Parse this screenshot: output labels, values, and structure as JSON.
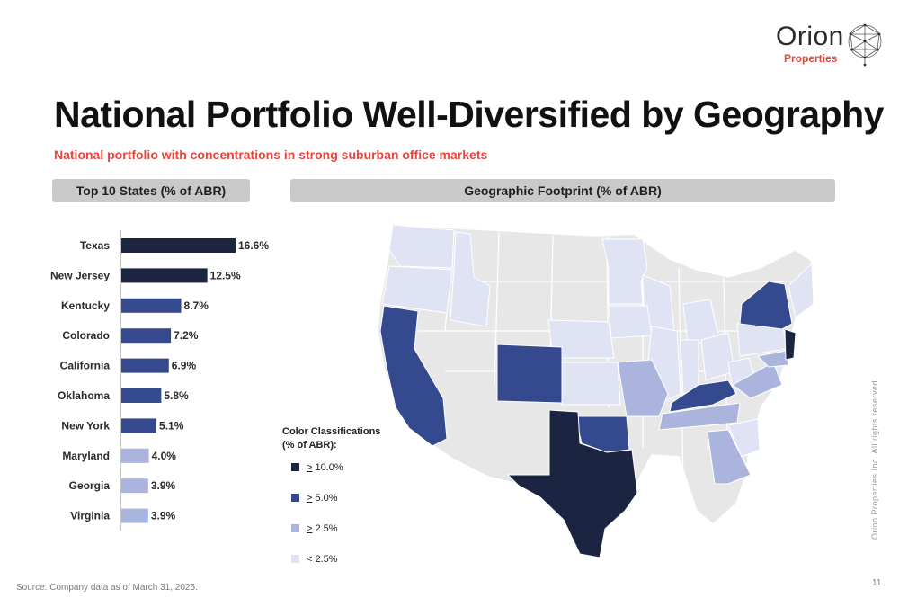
{
  "logo": {
    "word": "Orion",
    "sub": "Properties"
  },
  "page": {
    "title": "National Portfolio Well-Diversified by Geography",
    "subtitle": "National portfolio with concentrations in strong suburban office markets",
    "source": "Source: Company data as of March 31, 2025.",
    "page_number": "11",
    "rights": "Orion Properties Inc. All rights reserved."
  },
  "headers": {
    "left": "Top 10 States (% of ABR)",
    "right": "Geographic Footprint (% of ABR)"
  },
  "colors": {
    "tier1": "#1b2440",
    "tier2": "#354a8e",
    "tier3": "#aab4dc",
    "tier4": "#dfe3f4",
    "other": "#e7e7e7",
    "accent": "#e8443a"
  },
  "chart_data": {
    "type": "bar",
    "orientation": "horizontal",
    "categories": [
      "Texas",
      "New Jersey",
      "Kentucky",
      "Colorado",
      "California",
      "Oklahoma",
      "New York",
      "Maryland",
      "Georgia",
      "Virginia"
    ],
    "values": [
      16.6,
      12.5,
      8.7,
      7.2,
      6.9,
      5.8,
      5.1,
      4.0,
      3.9,
      3.9
    ],
    "labels": [
      "16.6%",
      "12.5%",
      "8.7%",
      "7.2%",
      "6.9%",
      "5.8%",
      "5.1%",
      "4.0%",
      "3.9%",
      "3.9%"
    ],
    "tiers": [
      1,
      1,
      2,
      2,
      2,
      2,
      2,
      3,
      3,
      3
    ],
    "xlim": [
      0,
      16.6
    ]
  },
  "legend": {
    "title_line1": "Color Classifications",
    "title_line2": "(% of ABR):",
    "items": [
      {
        "prefix": ">",
        "label": " 10.0%"
      },
      {
        "prefix": ">",
        "label": " 5.0%"
      },
      {
        "prefix": ">",
        "label": " 2.5%"
      },
      {
        "prefix": "",
        "label": "< 2.5%"
      }
    ]
  }
}
